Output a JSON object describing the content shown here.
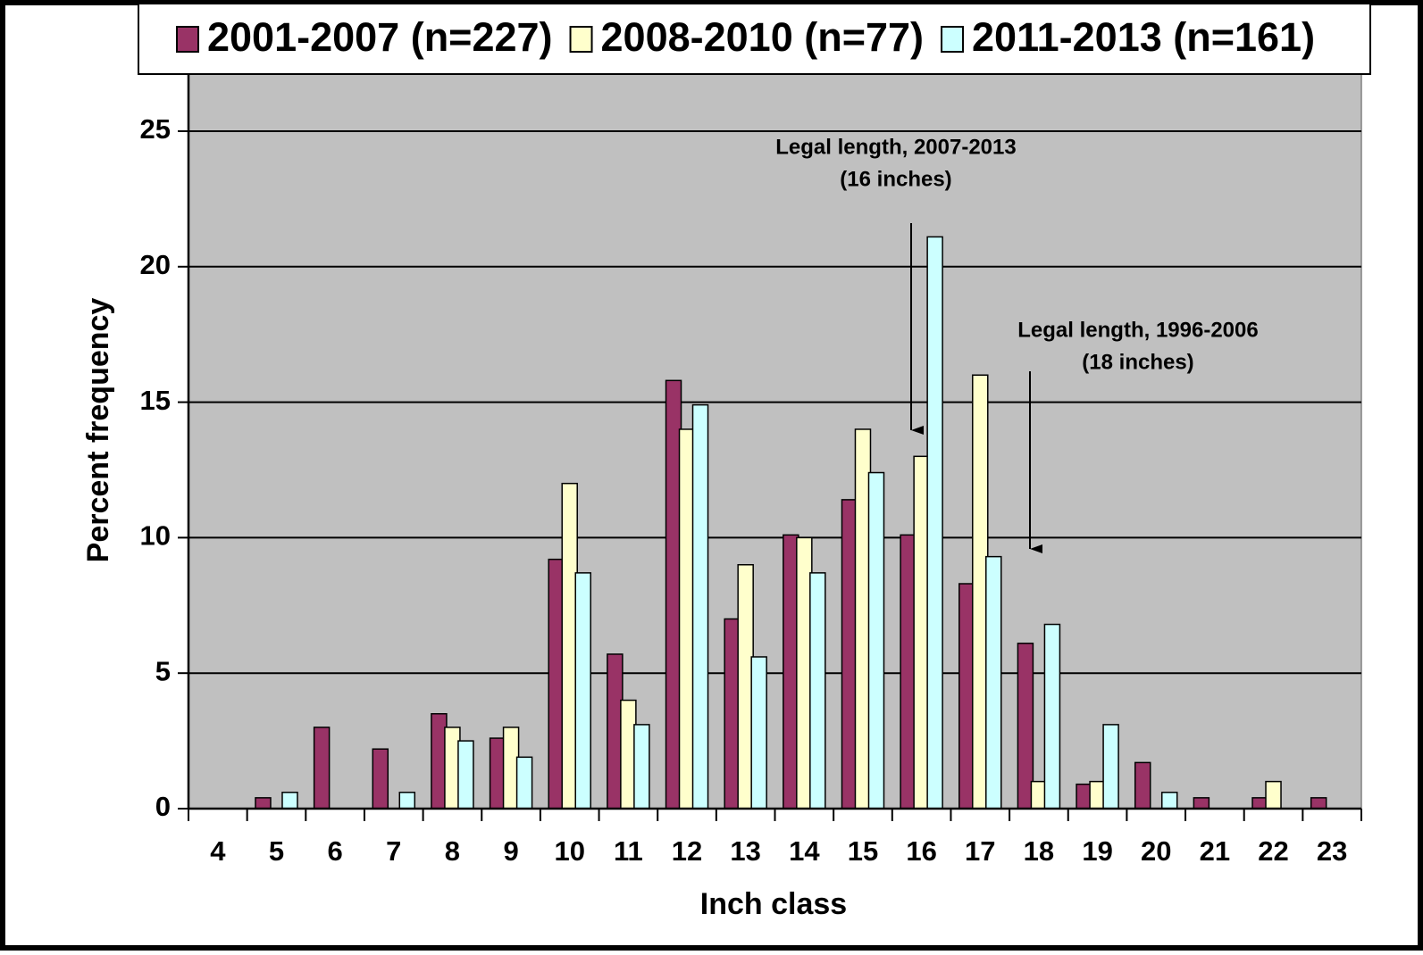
{
  "chart_data": {
    "type": "bar",
    "x_label": "Inch class",
    "y_label": "Percent frequency",
    "categories": [
      "4",
      "5",
      "6",
      "7",
      "8",
      "9",
      "10",
      "11",
      "12",
      "13",
      "14",
      "15",
      "16",
      "17",
      "18",
      "19",
      "20",
      "21",
      "22",
      "23"
    ],
    "series": [
      {
        "name": "2001-2007 (n=227)",
        "color": "#993366",
        "values": [
          0,
          0.4,
          3.0,
          2.2,
          3.5,
          2.6,
          9.2,
          5.7,
          15.8,
          7.0,
          10.1,
          11.4,
          10.1,
          8.3,
          6.1,
          0.9,
          1.7,
          0.4,
          0.4,
          0.4
        ]
      },
      {
        "name": "2008-2010 (n=77)",
        "color": "#ffffcc",
        "values": [
          0,
          0,
          0,
          0,
          3.0,
          3.0,
          12,
          4,
          14,
          9,
          10,
          14,
          13,
          16,
          1,
          1,
          0,
          0,
          1,
          0
        ]
      },
      {
        "name": "2011-2013 (n=161)",
        "color": "#ccffff",
        "values": [
          0,
          0.6,
          0,
          0.6,
          2.5,
          1.9,
          8.7,
          3.1,
          14.9,
          5.6,
          8.7,
          12.4,
          21.1,
          9.3,
          6.8,
          3.1,
          0.6,
          0,
          0,
          0
        ]
      }
    ],
    "ylim": [
      0,
      25
    ],
    "yticks": [
      0,
      5,
      10,
      15,
      20,
      25
    ],
    "grid": true,
    "annotations": [
      {
        "lines": [
          "Legal length, 2007-2013",
          "(16 inches)"
        ]
      },
      {
        "lines": [
          "Legal length, 1996-2006",
          "(18 inches)"
        ]
      }
    ]
  }
}
